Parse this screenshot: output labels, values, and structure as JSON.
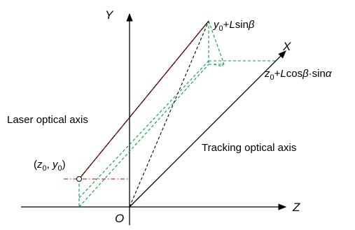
{
  "diagram": {
    "axes": {
      "y": "Y",
      "x": "X",
      "z": "Z",
      "origin": "O"
    },
    "labels": {
      "laser_axis": "Laser optical axis",
      "tracking_axis": "Tracking optical axis",
      "start_point": {
        "open": "(",
        "z": "z",
        "z_sub": "0",
        "sep": ", ",
        "y": "y",
        "y_sub": "0",
        "close": ")"
      },
      "top_expr": {
        "y": "y",
        "y_sub": "0",
        "plus": "+",
        "L": "L",
        "fn": "sin",
        "beta": "β"
      },
      "right_expr": {
        "z": "z",
        "z_sub": "0",
        "plus": "+",
        "L": "L",
        "fn1": "cos",
        "beta": "β",
        "dot": "·",
        "fn2": "sin",
        "alpha": "α"
      }
    },
    "colors": {
      "axis": "#000000",
      "dash_dot": "#c00000",
      "green_dashed": "#00a040",
      "black_dashed": "#000000"
    }
  }
}
